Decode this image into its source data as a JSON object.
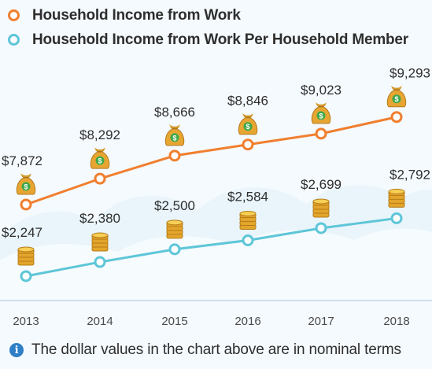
{
  "legend": [
    {
      "label": "Household Income from Work",
      "color": "#f07f2f"
    },
    {
      "label": "Household Income from Work Per Household Member",
      "color": "#5ec6d8"
    }
  ],
  "footnote": {
    "icon": "info-icon",
    "text": "The dollar values in the chart above are in nominal terms"
  },
  "chart_data": {
    "type": "line",
    "x": [
      "2013",
      "2014",
      "2015",
      "2016",
      "2017",
      "2018"
    ],
    "series": [
      {
        "name": "Household Income from Work",
        "values": [
          7872,
          8292,
          8666,
          8846,
          9023,
          9293
        ],
        "labels": [
          "$7,872",
          "$8,292",
          "$8,666",
          "$8,846",
          "$9,023",
          "$9,293"
        ],
        "color": "#f07f2f",
        "icon": "money-bag-icon"
      },
      {
        "name": "Household Income from Work Per Household Member",
        "values": [
          2247,
          2380,
          2500,
          2584,
          2699,
          2792
        ],
        "labels": [
          "$2,247",
          "$2,380",
          "$2,500",
          "$2,584",
          "$2,699",
          "$2,792"
        ],
        "color": "#5ec6d8",
        "icon": "coin-stack-icon"
      }
    ],
    "axis_color": "#cfe0ea",
    "background_color": "#f5fafe",
    "cloud_color": "#e8f4fb",
    "grid": false
  }
}
